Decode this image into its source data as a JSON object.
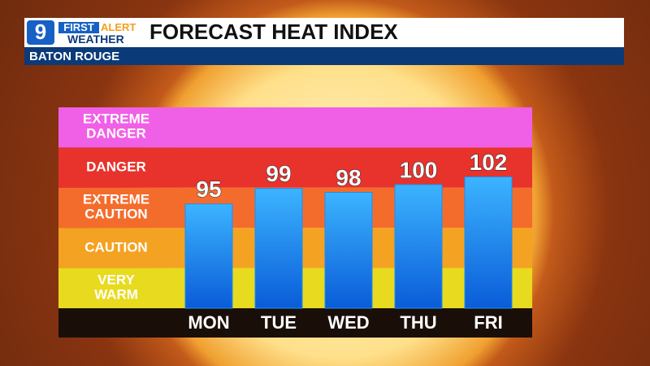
{
  "header": {
    "channel": "9",
    "brand_first": "FIRST",
    "brand_alert": "ALERT",
    "brand_sub": "WEATHER",
    "location": "BATON ROUGE"
  },
  "chart_data": {
    "type": "bar",
    "title": "FORECAST HEAT INDEX",
    "categories": [
      "MON",
      "TUE",
      "WED",
      "THU",
      "FRI"
    ],
    "values": [
      95,
      99,
      98,
      100,
      102
    ],
    "color": "#1b8ef0",
    "ylim": [
      68,
      120
    ],
    "bands": [
      {
        "label": "EXTREME DANGER",
        "color": "#f060e6"
      },
      {
        "label": "DANGER",
        "color": "#e8322c"
      },
      {
        "label": "EXTREME CAUTION",
        "color": "#f46c2c"
      },
      {
        "label": "CAUTION",
        "color": "#f4a222"
      },
      {
        "label": "VERY WARM",
        "color": "#e8da1e"
      }
    ]
  }
}
